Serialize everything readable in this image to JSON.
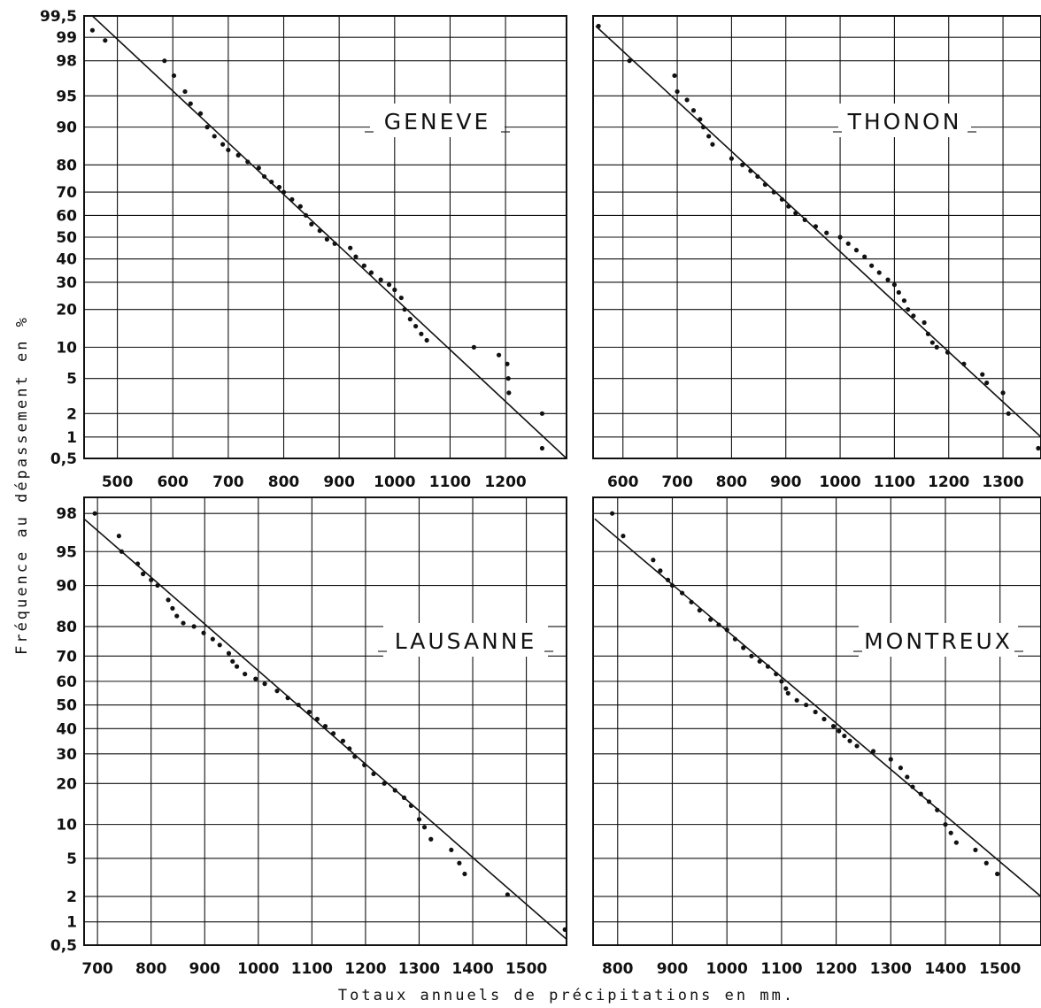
{
  "figure": {
    "ylabel": "Fréquence au dépassement en %",
    "xlabel": "Totaux annuels de précipitations en mm."
  },
  "chart_data": [
    {
      "type": "scatter",
      "title": "GENEVE",
      "xlim": [
        440,
        1310
      ],
      "x_ticks": [
        500,
        600,
        700,
        800,
        900,
        1000,
        1100,
        1200
      ],
      "y_scale": "probability",
      "ylim": [
        0.5,
        99.5
      ],
      "y_ticks": [
        0.5,
        1,
        2,
        5,
        10,
        20,
        30,
        40,
        50,
        60,
        70,
        80,
        90,
        95,
        98,
        99,
        99.5
      ],
      "y_tick_labels": [
        "0,5",
        "1",
        "2",
        "5",
        "10",
        "20",
        "30",
        "40",
        "50",
        "60",
        "70",
        "80",
        "90",
        "95",
        "98",
        "99",
        "99,5"
      ],
      "grid": true,
      "fit_line": [
        [
          455,
          99.5
        ],
        [
          1310,
          0.5
        ]
      ],
      "points": [
        [
          455,
          99.2
        ],
        [
          478,
          98.9
        ],
        [
          585,
          98
        ],
        [
          602,
          97
        ],
        [
          622,
          95.5
        ],
        [
          632,
          94
        ],
        [
          650,
          92.5
        ],
        [
          662,
          90
        ],
        [
          675,
          88
        ],
        [
          690,
          86
        ],
        [
          700,
          84.5
        ],
        [
          718,
          83
        ],
        [
          735,
          81
        ],
        [
          755,
          79
        ],
        [
          765,
          76
        ],
        [
          778,
          74
        ],
        [
          792,
          72
        ],
        [
          800,
          70
        ],
        [
          815,
          67
        ],
        [
          830,
          64
        ],
        [
          840,
          60
        ],
        [
          850,
          56
        ],
        [
          865,
          53
        ],
        [
          878,
          49
        ],
        [
          892,
          47
        ],
        [
          920,
          45
        ],
        [
          930,
          41
        ],
        [
          945,
          37
        ],
        [
          958,
          34
        ],
        [
          975,
          31
        ],
        [
          990,
          29
        ],
        [
          1000,
          27
        ],
        [
          1012,
          24
        ],
        [
          1018,
          20
        ],
        [
          1028,
          17
        ],
        [
          1038,
          15
        ],
        [
          1048,
          13
        ],
        [
          1058,
          11.5
        ],
        [
          1143,
          10
        ],
        [
          1188,
          8.5
        ],
        [
          1203,
          7
        ],
        [
          1205,
          5
        ],
        [
          1206,
          3.5
        ],
        [
          1266,
          2
        ],
        [
          1266,
          0.7
        ]
      ]
    },
    {
      "type": "scatter",
      "title": "THONON",
      "xlim": [
        545,
        1370
      ],
      "x_ticks": [
        600,
        700,
        800,
        900,
        1000,
        1100,
        1200,
        1300
      ],
      "y_scale": "probability",
      "ylim": [
        0.5,
        99.5
      ],
      "grid": true,
      "fit_line": [
        [
          550,
          99.3
        ],
        [
          1370,
          1
        ]
      ],
      "points": [
        [
          555,
          99.3
        ],
        [
          612,
          98
        ],
        [
          695,
          97
        ],
        [
          700,
          95.5
        ],
        [
          718,
          94.5
        ],
        [
          730,
          93
        ],
        [
          742,
          91.5
        ],
        [
          748,
          90
        ],
        [
          758,
          88
        ],
        [
          765,
          86
        ],
        [
          800,
          82
        ],
        [
          820,
          80
        ],
        [
          835,
          78
        ],
        [
          848,
          76
        ],
        [
          862,
          73
        ],
        [
          878,
          70
        ],
        [
          893,
          67
        ],
        [
          905,
          64
        ],
        [
          918,
          61
        ],
        [
          935,
          58
        ],
        [
          955,
          55
        ],
        [
          975,
          52
        ],
        [
          1000,
          50
        ],
        [
          1015,
          47
        ],
        [
          1030,
          44
        ],
        [
          1045,
          41
        ],
        [
          1058,
          37
        ],
        [
          1072,
          34
        ],
        [
          1088,
          31
        ],
        [
          1100,
          29
        ],
        [
          1108,
          26
        ],
        [
          1118,
          23
        ],
        [
          1125,
          20
        ],
        [
          1135,
          18
        ],
        [
          1155,
          16
        ],
        [
          1162,
          13
        ],
        [
          1170,
          11
        ],
        [
          1178,
          10
        ],
        [
          1198,
          9
        ],
        [
          1228,
          7
        ],
        [
          1262,
          5.5
        ],
        [
          1270,
          4.5
        ],
        [
          1300,
          3.5
        ],
        [
          1310,
          2
        ],
        [
          1365,
          0.7
        ]
      ]
    },
    {
      "type": "scatter",
      "title": "LAUSANNE",
      "xlim": [
        675,
        1575
      ],
      "x_ticks": [
        700,
        800,
        900,
        1000,
        1100,
        1200,
        1300,
        1400,
        1500
      ],
      "y_scale": "probability",
      "ylim": [
        0.5,
        98.7
      ],
      "y_ticks": [
        0.5,
        1,
        2,
        5,
        10,
        20,
        30,
        40,
        50,
        60,
        70,
        80,
        90,
        95,
        98
      ],
      "y_tick_labels": [
        "0,5",
        "1",
        "2",
        "5",
        "10",
        "20",
        "30",
        "40",
        "50",
        "60",
        "70",
        "80",
        "90",
        "95",
        "98"
      ],
      "grid": true,
      "fit_line": [
        [
          675,
          97.7
        ],
        [
          1575,
          0.6
        ]
      ],
      "points": [
        [
          695,
          98
        ],
        [
          740,
          96.5
        ],
        [
          745,
          95
        ],
        [
          775,
          93.5
        ],
        [
          785,
          92
        ],
        [
          800,
          91
        ],
        [
          812,
          90
        ],
        [
          832,
          87
        ],
        [
          840,
          85
        ],
        [
          848,
          83
        ],
        [
          860,
          81
        ],
        [
          880,
          80
        ],
        [
          898,
          78
        ],
        [
          915,
          76
        ],
        [
          928,
          74
        ],
        [
          945,
          71
        ],
        [
          952,
          68
        ],
        [
          960,
          66
        ],
        [
          975,
          63
        ],
        [
          995,
          61
        ],
        [
          1012,
          59
        ],
        [
          1035,
          56
        ],
        [
          1055,
          53
        ],
        [
          1075,
          50
        ],
        [
          1095,
          47
        ],
        [
          1110,
          44
        ],
        [
          1125,
          41
        ],
        [
          1140,
          38
        ],
        [
          1158,
          35
        ],
        [
          1170,
          32
        ],
        [
          1180,
          29
        ],
        [
          1198,
          26
        ],
        [
          1215,
          23
        ],
        [
          1235,
          20
        ],
        [
          1255,
          18
        ],
        [
          1272,
          16
        ],
        [
          1285,
          14
        ],
        [
          1300,
          11
        ],
        [
          1310,
          9.5
        ],
        [
          1322,
          7.5
        ],
        [
          1360,
          6
        ],
        [
          1375,
          4.5
        ],
        [
          1385,
          3.5
        ],
        [
          1465,
          2.1
        ],
        [
          1572,
          0.8
        ]
      ]
    },
    {
      "type": "scatter",
      "title": "MONTREUX",
      "xlim": [
        755,
        1575
      ],
      "x_ticks": [
        800,
        900,
        1000,
        1100,
        1200,
        1300,
        1400,
        1500
      ],
      "y_scale": "probability",
      "ylim": [
        0.5,
        98.7
      ],
      "grid": true,
      "fit_line": [
        [
          758,
          97.7
        ],
        [
          1575,
          2
        ]
      ],
      "points": [
        [
          790,
          98
        ],
        [
          810,
          96.5
        ],
        [
          865,
          94
        ],
        [
          878,
          92.5
        ],
        [
          892,
          91
        ],
        [
          900,
          90
        ],
        [
          918,
          88.5
        ],
        [
          935,
          86.5
        ],
        [
          950,
          84.5
        ],
        [
          970,
          82
        ],
        [
          985,
          80.5
        ],
        [
          1000,
          79
        ],
        [
          1015,
          76
        ],
        [
          1030,
          73
        ],
        [
          1045,
          70
        ],
        [
          1060,
          68
        ],
        [
          1075,
          66
        ],
        [
          1090,
          63
        ],
        [
          1100,
          60
        ],
        [
          1108,
          57
        ],
        [
          1112,
          55
        ],
        [
          1128,
          52
        ],
        [
          1145,
          50
        ],
        [
          1162,
          47
        ],
        [
          1178,
          44
        ],
        [
          1195,
          41
        ],
        [
          1205,
          39
        ],
        [
          1215,
          37
        ],
        [
          1225,
          35
        ],
        [
          1238,
          33
        ],
        [
          1268,
          31
        ],
        [
          1300,
          28
        ],
        [
          1318,
          25
        ],
        [
          1330,
          22
        ],
        [
          1340,
          19
        ],
        [
          1355,
          17
        ],
        [
          1370,
          15
        ],
        [
          1385,
          13
        ],
        [
          1400,
          10
        ],
        [
          1410,
          8.5
        ],
        [
          1420,
          7
        ],
        [
          1455,
          6
        ],
        [
          1475,
          4.5
        ],
        [
          1495,
          3.5
        ]
      ]
    }
  ]
}
